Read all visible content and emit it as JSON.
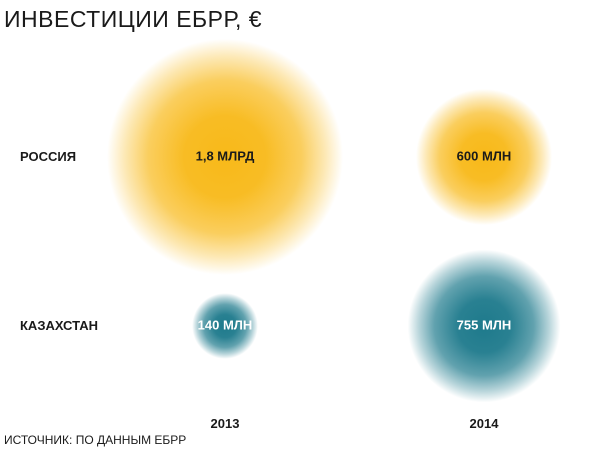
{
  "chart_data": {
    "type": "bubble",
    "title": "ИНВЕСТИЦИИ ЕБРР, €",
    "categories": [
      "2013",
      "2014"
    ],
    "series": [
      {
        "name": "РОССИЯ",
        "values": [
          1800000000,
          600000000
        ],
        "labels": [
          "1,8 МЛРД",
          "600 МЛН"
        ],
        "color": "#f8b919"
      },
      {
        "name": "КАЗАХСТАН",
        "values": [
          140000000,
          755000000
        ],
        "labels": [
          "140 МЛН",
          "755 МЛН"
        ],
        "color": "#1e7a8c"
      }
    ],
    "source": "ИСТОЧНИК: ПО ДАННЫМ ЕБРР"
  }
}
